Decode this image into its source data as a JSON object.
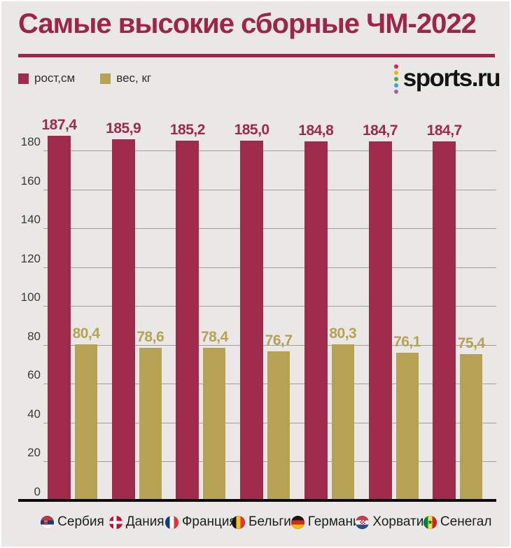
{
  "header": {
    "title": "Самые высокие сборные ЧМ-2022",
    "accent_color": "#9e2547"
  },
  "legend": {
    "items": [
      {
        "label": "рост,см",
        "color": "#9e2a4c"
      },
      {
        "label": "вес, кг",
        "color": "#b5a254"
      }
    ]
  },
  "logo": {
    "text": "sports.ru",
    "text_color": "#141414",
    "dot_colors": [
      "#e31c5f",
      "#eeb111",
      "#4ca83d",
      "#2fa9e0",
      "#9a63ad"
    ]
  },
  "chart_data": {
    "type": "bar",
    "title": "Самые высокие сборные ЧМ-2022",
    "categories": [
      "Сербия",
      "Дания",
      "Франция",
      "Бельгия",
      "Германия",
      "Хорватия",
      "Сенегал"
    ],
    "flags": [
      "serbia",
      "denmark",
      "france",
      "belgium",
      "germany",
      "croatia",
      "senegal"
    ],
    "series": [
      {
        "name": "рост,см",
        "color": "#9e2a4c",
        "values": [
          187.4,
          185.9,
          185.2,
          185.0,
          184.8,
          184.7,
          184.7
        ],
        "labels": [
          "187,4",
          "185,9",
          "185,2",
          "185,0",
          "184,8",
          "184,7",
          "184,7"
        ]
      },
      {
        "name": "вес, кг",
        "color": "#b5a254",
        "values": [
          80.4,
          78.6,
          78.4,
          76.7,
          80.3,
          76.1,
          75.4
        ],
        "labels": [
          "80,4",
          "78,6",
          "78,4",
          "76,7",
          "80,3",
          "76,1",
          "75,4"
        ]
      }
    ],
    "y_ticks": [
      0,
      20,
      40,
      60,
      80,
      100,
      120,
      140,
      160,
      180
    ],
    "ylim": [
      0,
      195
    ],
    "grid": true,
    "legend_position": "top-left",
    "grid_color": "#a19f9d",
    "background_color": "#e9e8e6"
  }
}
